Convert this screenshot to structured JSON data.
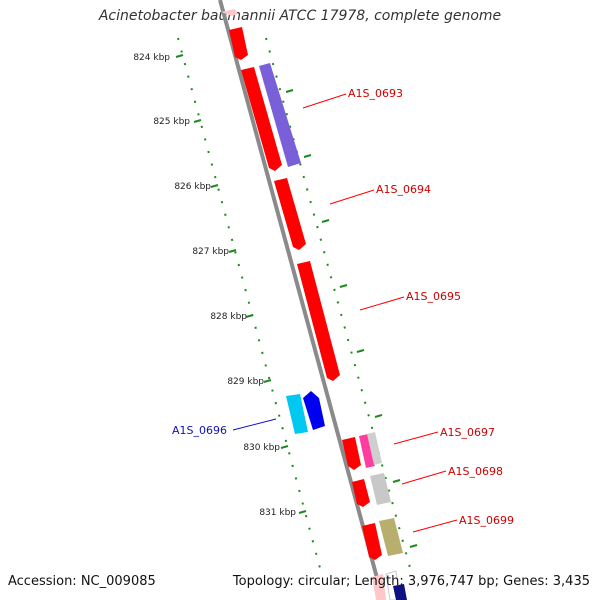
{
  "title": "Acinetobacter baumannii ATCC 17978, complete genome",
  "footer": {
    "accession_prefix": "Accession: ",
    "accession": "NC_009085",
    "summary_prefix": "Topology: circular; Length: ",
    "length": "3,976,747 bp",
    "genes_prefix": "; Genes: ",
    "genes": "3,435"
  },
  "colors": {
    "backbone": "#8a8a8a",
    "scale_dots": "#1e8a1e",
    "forward_gene": "#ff0000",
    "reverse_label": "#1010c0",
    "forward_label": "#cc0000"
  },
  "scale_labels": [
    "824 kbp",
    "825 kbp",
    "826 kbp",
    "827 kbp",
    "828 kbp",
    "829 kbp",
    "830 kbp",
    "831 kbp"
  ],
  "gene_labels": [
    {
      "id": "A1S_0693",
      "strand": "forward"
    },
    {
      "id": "A1S_0694",
      "strand": "forward"
    },
    {
      "id": "A1S_0695",
      "strand": "forward"
    },
    {
      "id": "A1S_0696",
      "strand": "reverse"
    },
    {
      "id": "A1S_0697",
      "strand": "forward"
    },
    {
      "id": "A1S_0698",
      "strand": "forward"
    },
    {
      "id": "A1S_0699",
      "strand": "forward"
    }
  ]
}
